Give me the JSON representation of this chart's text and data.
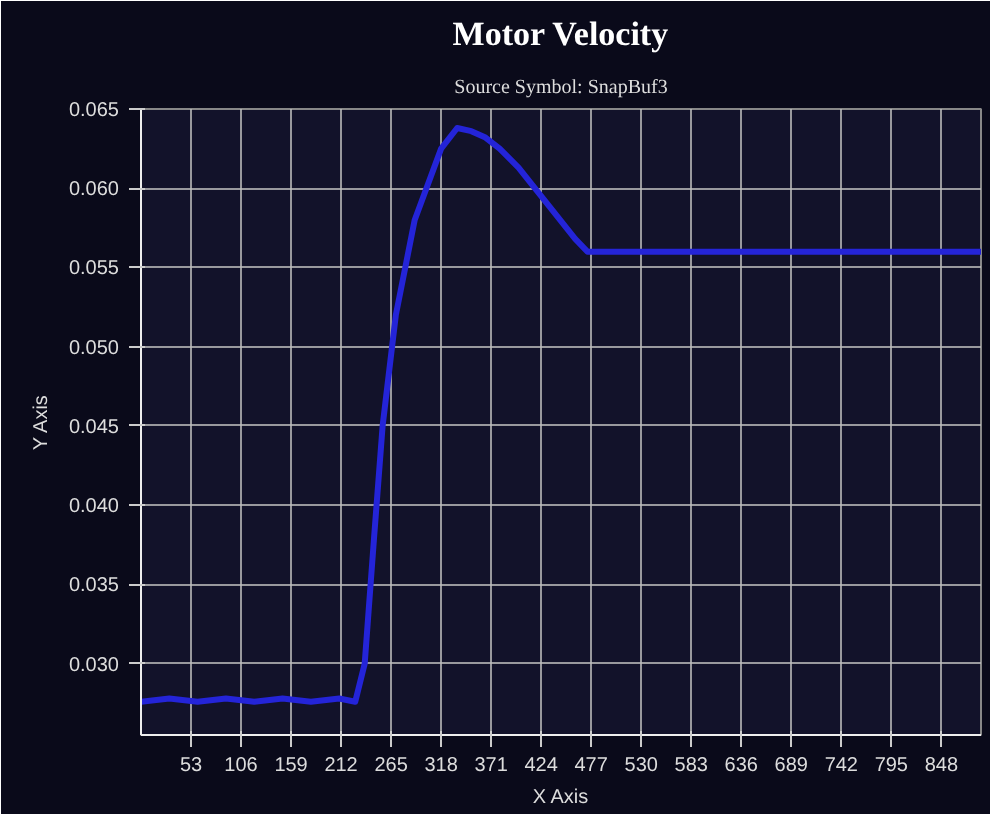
{
  "chart_data": {
    "type": "line",
    "title": "Motor Velocity",
    "subtitle": "Source Symbol: SnapBuf3",
    "xlabel": "X Axis",
    "ylabel": "Y Axis",
    "x": [
      0,
      30,
      60,
      90,
      120,
      150,
      180,
      210,
      227,
      237,
      247,
      256,
      270,
      290,
      318,
      335,
      350,
      365,
      380,
      400,
      420,
      440,
      460,
      473,
      500,
      550,
      600,
      650,
      700,
      750,
      800,
      850,
      890
    ],
    "series": [
      {
        "color": "#2424d8",
        "values": [
          0.0276,
          0.0278,
          0.0276,
          0.0278,
          0.0276,
          0.0278,
          0.0276,
          0.0278,
          0.0276,
          0.03,
          0.038,
          0.045,
          0.052,
          0.058,
          0.0625,
          0.0638,
          0.0636,
          0.0632,
          0.0625,
          0.0613,
          0.0598,
          0.0583,
          0.0568,
          0.056,
          0.056,
          0.056,
          0.056,
          0.056,
          0.056,
          0.056,
          0.056,
          0.056,
          0.056
        ]
      }
    ],
    "xlim": [
      0,
      890
    ],
    "ylim": [
      0.0255,
      0.065
    ],
    "xticks": [
      53,
      106,
      159,
      212,
      265,
      318,
      371,
      424,
      477,
      530,
      583,
      636,
      689,
      742,
      795,
      848
    ],
    "yticks": [
      {
        "value": 0.03,
        "label": "0.030"
      },
      {
        "value": 0.035,
        "label": "0.035"
      },
      {
        "value": 0.04,
        "label": "0.040"
      },
      {
        "value": 0.045,
        "label": "0.045"
      },
      {
        "value": 0.05,
        "label": "0.050"
      },
      {
        "value": 0.055,
        "label": "0.055"
      },
      {
        "value": 0.06,
        "label": "0.060"
      },
      {
        "value": 0.065,
        "label": "0.065"
      }
    ],
    "grid": true,
    "marker": "none",
    "line_style": "solid"
  }
}
